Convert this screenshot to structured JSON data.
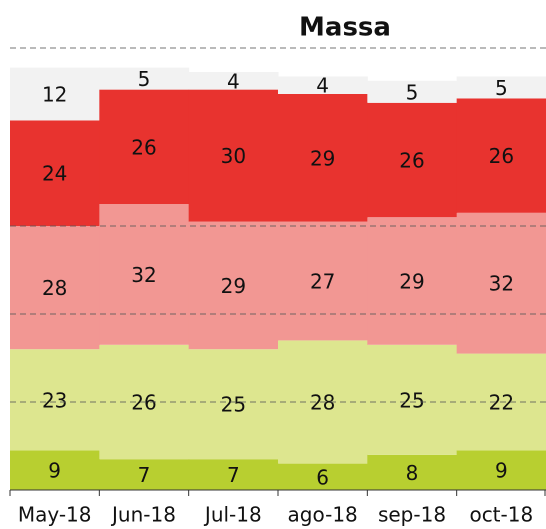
{
  "chart_data": {
    "type": "stacked_bar",
    "title": "Massa",
    "categories": [
      "May-18",
      "Jun-18",
      "Jul-18",
      "ago-18",
      "sep-18",
      "oct-18"
    ],
    "series": [
      {
        "color": "#b8cf30",
        "values": [
          9,
          7,
          7,
          6,
          8,
          9
        ]
      },
      {
        "color": "#dde68f",
        "values": [
          23,
          26,
          25,
          28,
          25,
          22
        ]
      },
      {
        "color": "#f29793",
        "values": [
          28,
          32,
          29,
          27,
          29,
          32
        ]
      },
      {
        "color": "#e8332f",
        "values": [
          24,
          26,
          30,
          29,
          26,
          26
        ]
      },
      {
        "color": "#f2f2f2",
        "values": [
          12,
          5,
          4,
          4,
          5,
          5
        ]
      }
    ],
    "ylim": [
      0,
      100
    ],
    "yticks": [
      20,
      40,
      60,
      100
    ],
    "grid": true
  }
}
